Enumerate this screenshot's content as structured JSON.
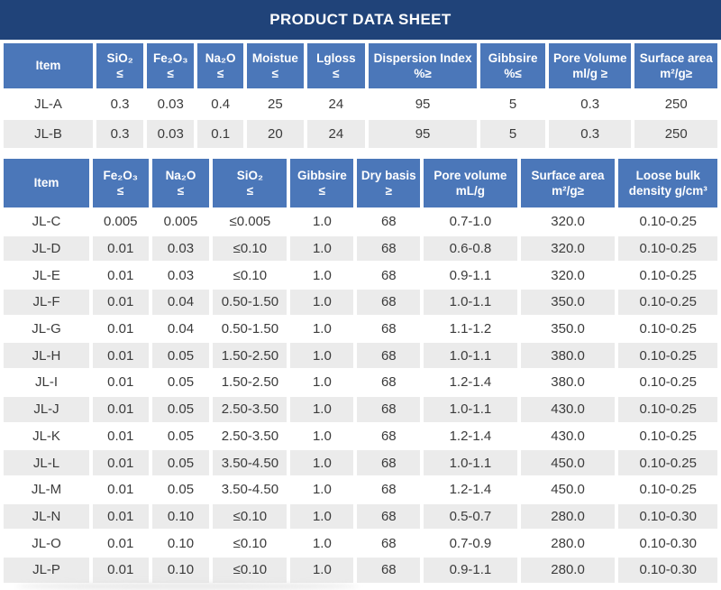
{
  "title": "PRODUCT DATA SHEET",
  "colors": {
    "title_bg": "#204379",
    "header_bg": "#4B77B9",
    "row_alt_bg": "#EBEBEB",
    "header_text": "#FFFFFF",
    "cell_text": "#3B3B3B"
  },
  "table1": {
    "headers": [
      {
        "line1": "Item",
        "line2": ""
      },
      {
        "line1": "SiO₂",
        "line2": "≤"
      },
      {
        "line1": "Fe₂O₃",
        "line2": "≤"
      },
      {
        "line1": "Na₂O",
        "line2": "≤"
      },
      {
        "line1": "Moistue",
        "line2": "≤"
      },
      {
        "line1": "Lgloss",
        "line2": "≤"
      },
      {
        "line1": "Dispersion Index",
        "line2": "%≥"
      },
      {
        "line1": "Gibbsire",
        "line2": "%≤"
      },
      {
        "line1": "Pore Volume",
        "line2": "ml/g ≥"
      },
      {
        "line1": "Surface area",
        "line2": "m²/g≥"
      }
    ],
    "rows": [
      [
        "JL-A",
        "0.3",
        "0.03",
        "0.4",
        "25",
        "24",
        "95",
        "5",
        "0.3",
        "250"
      ],
      [
        "JL-B",
        "0.3",
        "0.03",
        "0.1",
        "20",
        "24",
        "95",
        "5",
        "0.3",
        "250"
      ]
    ]
  },
  "table2": {
    "headers": [
      {
        "line1": "Item",
        "line2": ""
      },
      {
        "line1": "Fe₂O₃",
        "line2": "≤"
      },
      {
        "line1": "Na₂O",
        "line2": "≤"
      },
      {
        "line1": "SiO₂",
        "line2": "≤"
      },
      {
        "line1": "Gibbsire",
        "line2": "≤"
      },
      {
        "line1": "Dry basis",
        "line2": "≥"
      },
      {
        "line1": "Pore volume",
        "line2": "mL/g"
      },
      {
        "line1": "Surface area",
        "line2": "m²/g≥"
      },
      {
        "line1": "Loose bulk",
        "line2": "density g/cm³"
      }
    ],
    "rows": [
      [
        "JL-C",
        "0.005",
        "0.005",
        "≤0.005",
        "1.0",
        "68",
        "0.7-1.0",
        "320.0",
        "0.10-0.25"
      ],
      [
        "JL-D",
        "0.01",
        "0.03",
        "≤0.10",
        "1.0",
        "68",
        "0.6-0.8",
        "320.0",
        "0.10-0.25"
      ],
      [
        "JL-E",
        "0.01",
        "0.03",
        "≤0.10",
        "1.0",
        "68",
        "0.9-1.1",
        "320.0",
        "0.10-0.25"
      ],
      [
        "JL-F",
        "0.01",
        "0.04",
        "0.50-1.50",
        "1.0",
        "68",
        "1.0-1.1",
        "350.0",
        "0.10-0.25"
      ],
      [
        "JL-G",
        "0.01",
        "0.04",
        "0.50-1.50",
        "1.0",
        "68",
        "1.1-1.2",
        "350.0",
        "0.10-0.25"
      ],
      [
        "JL-H",
        "0.01",
        "0.05",
        "1.50-2.50",
        "1.0",
        "68",
        "1.0-1.1",
        "380.0",
        "0.10-0.25"
      ],
      [
        "JL-I",
        "0.01",
        "0.05",
        "1.50-2.50",
        "1.0",
        "68",
        "1.2-1.4",
        "380.0",
        "0.10-0.25"
      ],
      [
        "JL-J",
        "0.01",
        "0.05",
        "2.50-3.50",
        "1.0",
        "68",
        "1.0-1.1",
        "430.0",
        "0.10-0.25"
      ],
      [
        "JL-K",
        "0.01",
        "0.05",
        "2.50-3.50",
        "1.0",
        "68",
        "1.2-1.4",
        "430.0",
        "0.10-0.25"
      ],
      [
        "JL-L",
        "0.01",
        "0.05",
        "3.50-4.50",
        "1.0",
        "68",
        "1.0-1.1",
        "450.0",
        "0.10-0.25"
      ],
      [
        "JL-M",
        "0.01",
        "0.05",
        "3.50-4.50",
        "1.0",
        "68",
        "1.2-1.4",
        "450.0",
        "0.10-0.25"
      ],
      [
        "JL-N",
        "0.01",
        "0.10",
        "≤0.10",
        "1.0",
        "68",
        "0.5-0.7",
        "280.0",
        "0.10-0.30"
      ],
      [
        "JL-O",
        "0.01",
        "0.10",
        "≤0.10",
        "1.0",
        "68",
        "0.7-0.9",
        "280.0",
        "0.10-0.30"
      ],
      [
        "JL-P",
        "0.01",
        "0.10",
        "≤0.10",
        "1.0",
        "68",
        "0.9-1.1",
        "280.0",
        "0.10-0.30"
      ]
    ]
  }
}
